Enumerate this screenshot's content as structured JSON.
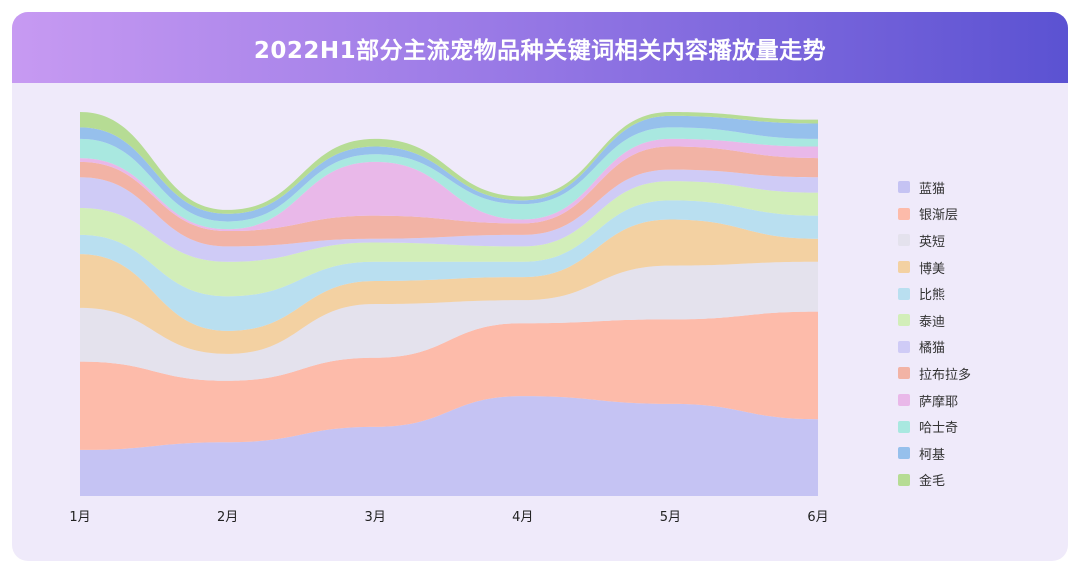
{
  "title": "2022H1部分主流宠物品种关键词相关内容播放量走势",
  "chart_data": {
    "type": "area",
    "stacked": true,
    "smooth": true,
    "categories": [
      "1月",
      "2月",
      "3月",
      "4月",
      "5月",
      "6月"
    ],
    "ylim": [
      0,
      100
    ],
    "legend_position": "right",
    "grid": false,
    "series": [
      {
        "name": "蓝猫",
        "color": "#c5c3f3",
        "values": [
          12,
          14,
          18,
          26,
          24,
          20
        ]
      },
      {
        "name": "银渐层",
        "color": "#fdbbaa",
        "values": [
          23,
          16,
          18,
          19,
          22,
          28
        ]
      },
      {
        "name": "英短",
        "color": "#e4e2ed",
        "values": [
          14,
          7,
          14,
          6,
          14,
          13
        ]
      },
      {
        "name": "博美",
        "color": "#f3d1a2",
        "values": [
          14,
          6,
          6,
          6,
          12,
          6
        ]
      },
      {
        "name": "比熊",
        "color": "#b9dff0",
        "values": [
          5,
          9,
          5,
          4,
          5,
          6
        ]
      },
      {
        "name": "泰迪",
        "color": "#d2eeb9",
        "values": [
          7,
          9,
          5,
          4,
          5,
          6
        ]
      },
      {
        "name": "橘猫",
        "color": "#cfcbf6",
        "values": [
          8,
          4,
          1,
          3,
          3,
          4
        ]
      },
      {
        "name": "拉布拉多",
        "color": "#f2b3a5",
        "values": [
          4,
          4,
          6,
          3,
          6,
          5
        ]
      },
      {
        "name": "萨摩耶",
        "color": "#e9b8e9",
        "values": [
          1,
          0.5,
          14,
          1,
          2,
          3
        ]
      },
      {
        "name": "哈士奇",
        "color": "#a9e8e0",
        "values": [
          5,
          2,
          2,
          4,
          3,
          2
        ]
      },
      {
        "name": "柯基",
        "color": "#96c0ec",
        "values": [
          3,
          2,
          2,
          1,
          3,
          4
        ]
      },
      {
        "name": "金毛",
        "color": "#b6dc94",
        "values": [
          4,
          1,
          2,
          1,
          1,
          1
        ]
      }
    ]
  }
}
